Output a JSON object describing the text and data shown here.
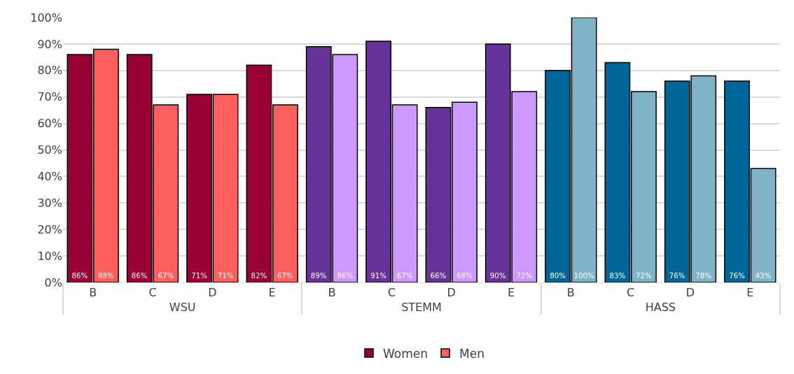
{
  "chart_data": {
    "type": "bar",
    "categories": [
      "B",
      "C",
      "D",
      "E",
      "B",
      "C",
      "D",
      "E",
      "B",
      "C",
      "D",
      "E"
    ],
    "annotations": [
      "WSU",
      "STEMM",
      "HASS"
    ],
    "series": [
      {
        "name": "Women",
        "color": "#990033",
        "colors": [
          "#990033",
          "#990033",
          "#990033",
          "#990033",
          "#663399",
          "#663399",
          "#663399",
          "#663399",
          "#006699",
          "#006699",
          "#006699",
          "#006699"
        ],
        "values": [
          86,
          86,
          71,
          82,
          89,
          91,
          66,
          90,
          80,
          83,
          76,
          76
        ],
        "value_labels": [
          "86%",
          "86%",
          "71%",
          "82%",
          "89%",
          "91%",
          "66%",
          "90%",
          "80%",
          "83%",
          "76%",
          "76%"
        ]
      },
      {
        "name": "Men",
        "color": "#ff5f5f",
        "colors": [
          "#ff5f5f",
          "#ff5f5f",
          "#ff5f5f",
          "#ff5f5f",
          "#cc99ff",
          "#cc99ff",
          "#cc99ff",
          "#cc99ff",
          "#7fb3c8",
          "#7fb3c8",
          "#7fb3c8",
          "#7fb3c8"
        ],
        "values": [
          88,
          67,
          71,
          67,
          86,
          67,
          68,
          72,
          100,
          72,
          78,
          43
        ],
        "value_labels": [
          "88%",
          "67%",
          "71%",
          "67%",
          "86%",
          "67%",
          "68%",
          "72%",
          "100%",
          "72%",
          "78%",
          "43%"
        ]
      }
    ],
    "ylim": [
      0,
      100
    ],
    "yticks": [
      {
        "value": 0,
        "label": "0%"
      },
      {
        "value": 10,
        "label": "10%"
      },
      {
        "value": 20,
        "label": "20%"
      },
      {
        "value": 30,
        "label": "30%"
      },
      {
        "value": 40,
        "label": "40%"
      },
      {
        "value": 50,
        "label": "50%"
      },
      {
        "value": 60,
        "label": "60%"
      },
      {
        "value": 70,
        "label": "70%"
      },
      {
        "value": 80,
        "label": "80%"
      },
      {
        "value": 90,
        "label": "90%"
      },
      {
        "value": 100,
        "label": "100%"
      }
    ],
    "grid": "y",
    "legend": "bottom"
  }
}
